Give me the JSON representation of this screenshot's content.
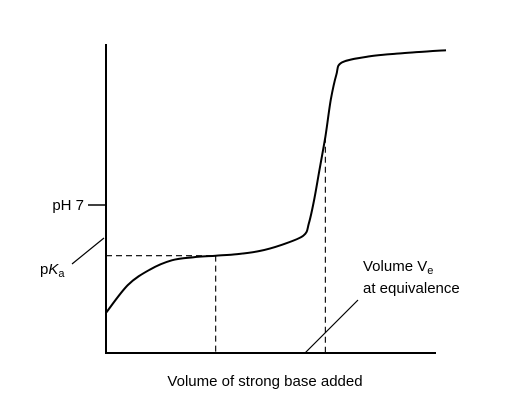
{
  "chart_data": {
    "type": "line",
    "title": "",
    "xlabel": "Volume of strong base added",
    "ylabel": "",
    "tick_labels": {
      "ph7": "pH 7",
      "pka_prefix": "p",
      "pka_K": "K",
      "pka_sub": "a"
    },
    "annotation": {
      "line1_prefix": "Volume V",
      "line1_sub": "e",
      "line2": "at equivalence"
    },
    "series": [
      {
        "curve": [
          [
            0,
            13
          ],
          [
            2,
            22
          ],
          [
            4,
            27
          ],
          [
            6,
            30
          ],
          [
            8,
            31
          ],
          [
            10,
            31.5
          ],
          [
            12,
            32
          ],
          [
            14,
            33
          ],
          [
            16,
            35
          ],
          [
            18,
            38
          ],
          [
            18.5,
            42
          ],
          [
            19,
            50
          ],
          [
            19.5,
            60
          ],
          [
            20,
            70
          ],
          [
            20.5,
            82
          ],
          [
            21,
            90
          ],
          [
            21.5,
            94
          ],
          [
            24,
            96
          ],
          [
            27,
            97
          ],
          [
            31,
            98
          ]
        ]
      }
    ],
    "pka_point": [
      10,
      31.5
    ],
    "equivalence_point": [
      20,
      70
    ],
    "ph7_level": 45
  }
}
